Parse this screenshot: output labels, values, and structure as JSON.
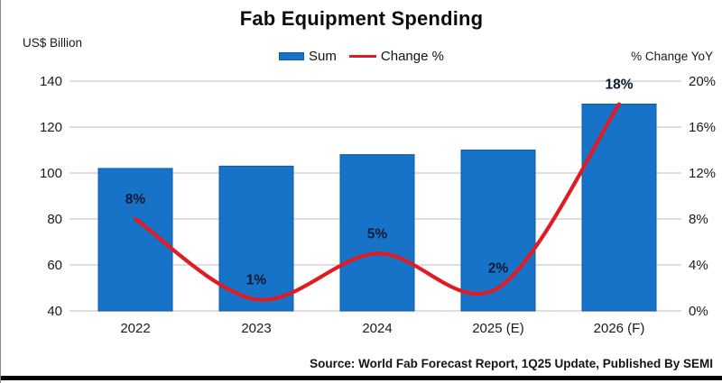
{
  "title": "Fab Equipment Spending",
  "axes": {
    "left_label": "US$ Billion",
    "right_label": "% Change YoY"
  },
  "legend": {
    "sum_label": "Sum",
    "change_label": "Change %"
  },
  "source": "Source: World Fab Forecast Report, 1Q25 Update, Published By SEMI",
  "colors": {
    "bar_fill": "#1673c8",
    "bar_border": "#0d5ba5",
    "line": "#e11b22",
    "grid": "#d4d4d4",
    "axis_text": "#1a1a1a",
    "data_label": "#0e1a33"
  },
  "chart_data": {
    "type": "bar",
    "subtype": "bar-line-combo",
    "title": "Fab Equipment Spending",
    "categories": [
      "2022",
      "2023",
      "2024",
      "2025 (E)",
      "2026 (F)"
    ],
    "series": [
      {
        "name": "Sum",
        "type": "bar",
        "axis": "left",
        "unit": "US$ Billion",
        "values": [
          102,
          103,
          108,
          110,
          130
        ]
      },
      {
        "name": "Change %",
        "type": "line",
        "axis": "right",
        "unit": "% Change YoY",
        "values": [
          8,
          1,
          5,
          2,
          18
        ],
        "point_labels": [
          "8%",
          "1%",
          "5%",
          "2%",
          "18%"
        ],
        "smooth": true
      }
    ],
    "left_axis": {
      "label": "US$ Billion",
      "min": 40,
      "max": 140,
      "tick_step": 20,
      "tick_labels": [
        "40",
        "60",
        "80",
        "100",
        "120",
        "140"
      ]
    },
    "right_axis": {
      "label": "% Change YoY",
      "min": 0,
      "max": 20,
      "tick_step": 4,
      "tick_labels": [
        "0%",
        "4%",
        "8%",
        "12%",
        "16%",
        "20%"
      ]
    },
    "grid": true,
    "legend_position": "top center",
    "source": "Source: World Fab Forecast Report, 1Q25 Update, Published By SEMI"
  }
}
